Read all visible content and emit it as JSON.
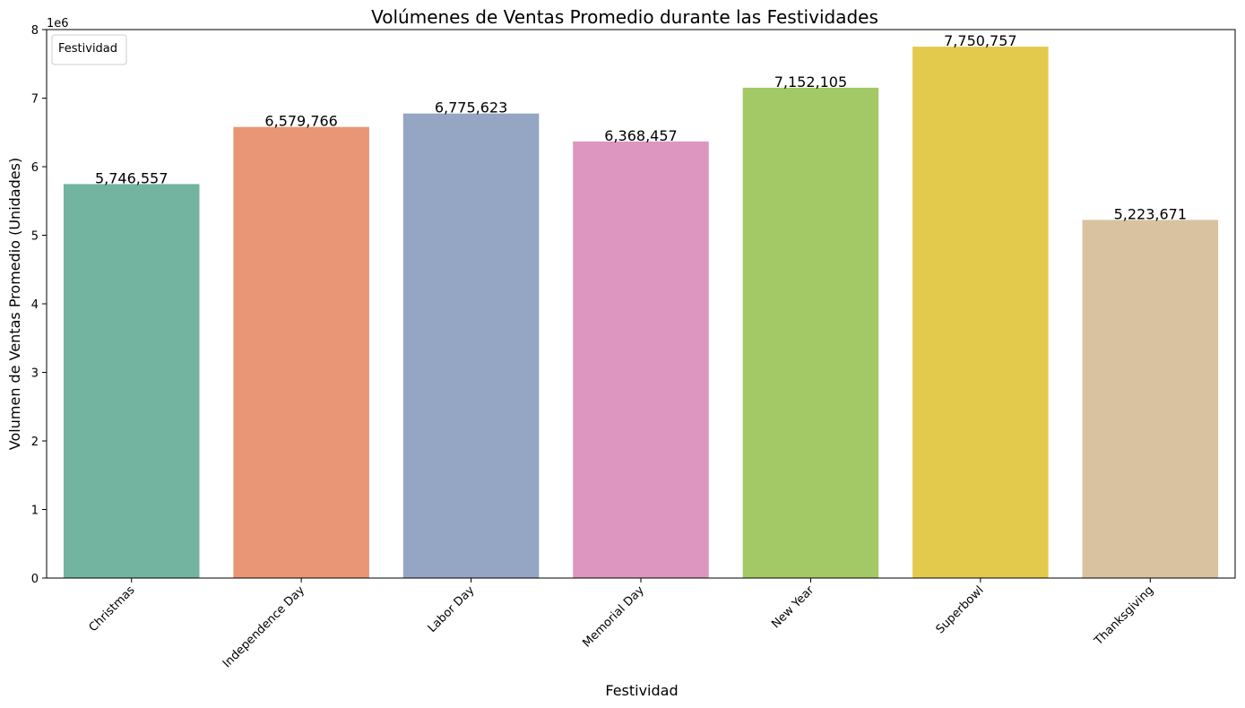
{
  "chart_data": {
    "type": "bar",
    "title": "Volúmenes de Ventas Promedio durante las Festividades",
    "xlabel": "Festividad",
    "ylabel": "Volumen de Ventas Promedio (Unidades)",
    "y_offset_label": "1e6",
    "ylim": [
      0,
      8000000
    ],
    "yticks": [
      0,
      1000000,
      2000000,
      3000000,
      4000000,
      5000000,
      6000000,
      7000000,
      8000000
    ],
    "ytick_labels": [
      "0",
      "1",
      "2",
      "3",
      "4",
      "5",
      "6",
      "7",
      "8"
    ],
    "legend_title": "Festividad",
    "legend_position": "upper-left",
    "grid": false,
    "categories": [
      "Christmas",
      "Independence Day",
      "Labor Day",
      "Memorial Day",
      "New Year",
      "Superbowl",
      "Thanksgiving"
    ],
    "values": [
      5746557,
      6579766,
      6775623,
      6368457,
      7152105,
      7750757,
      5223671
    ],
    "value_labels": [
      "5,746,557",
      "6,579,766",
      "6,775,623",
      "6,368,457",
      "7,152,105",
      "7,750,757",
      "5,223,671"
    ],
    "colors": [
      "#72b4a0",
      "#e89675",
      "#95a5c4",
      "#dc96c0",
      "#a3c866",
      "#e4ca4c",
      "#d9c29f"
    ]
  }
}
